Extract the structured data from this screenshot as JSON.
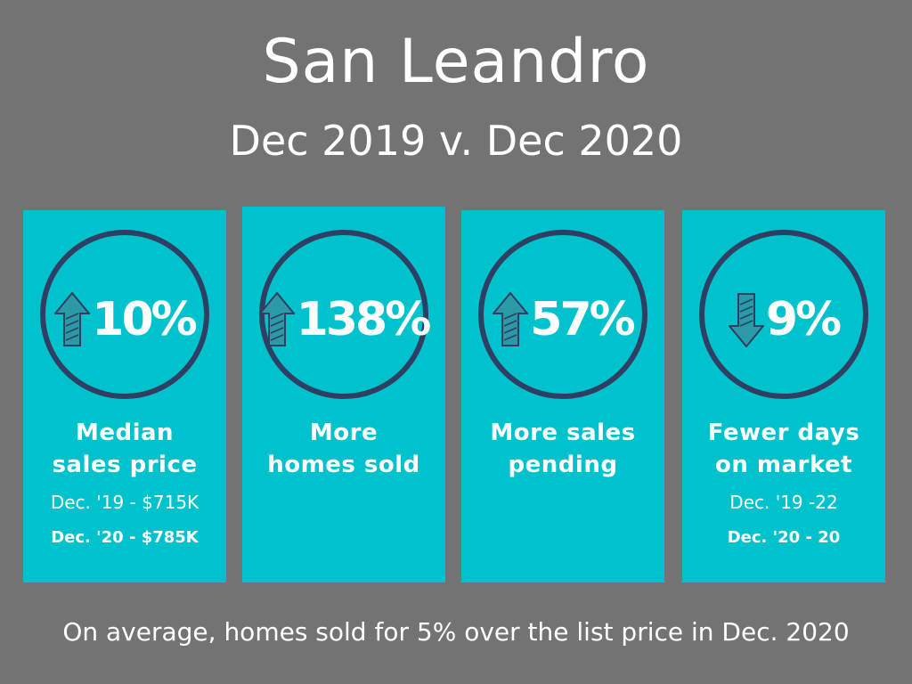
{
  "title": "San Leandro",
  "subtitle": "Dec 2019 v. Dec 2020",
  "colors": {
    "background": "#737373",
    "card": "#00c2cc",
    "circle": "#2e3f63",
    "text": "#ffffff"
  },
  "cards": [
    {
      "direction": "up",
      "arrow_icon": "arrow-up-icon",
      "value": "10%",
      "label_line1": "Median",
      "label_line2": "sales price",
      "detail_prev": "Dec. '19 - $715K",
      "detail_curr": "Dec. '20 - $785K"
    },
    {
      "direction": "up",
      "arrow_icon": "arrow-up-icon",
      "value": "138%",
      "label_line1": "More",
      "label_line2": "homes sold"
    },
    {
      "direction": "up",
      "arrow_icon": "arrow-up-icon",
      "value": "57%",
      "label_line1": "More sales",
      "label_line2": "pending"
    },
    {
      "direction": "down",
      "arrow_icon": "arrow-down-icon",
      "value": "9%",
      "label_line1": "Fewer days",
      "label_line2": "on market",
      "detail_prev": "Dec. '19 -22",
      "detail_curr": "Dec. '20 - 20"
    }
  ],
  "footer": "On average, homes sold for 5% over the list price in Dec. 2020"
}
